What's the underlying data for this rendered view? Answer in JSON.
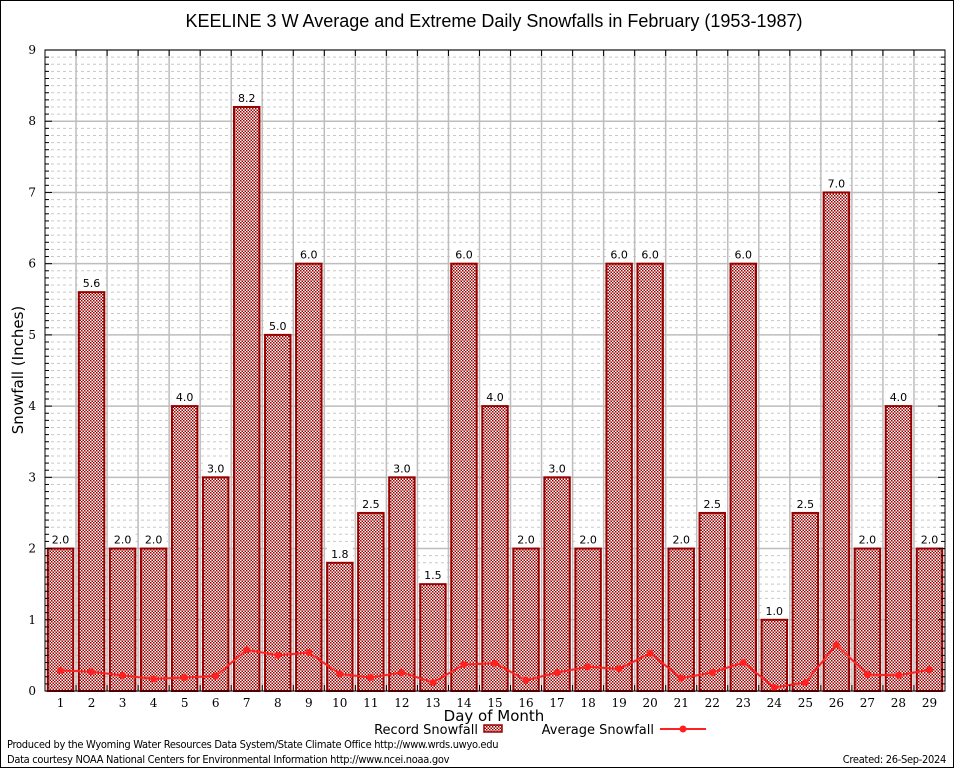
{
  "chart_data": {
    "type": "bar",
    "title": "KEELINE 3 W Average and Extreme Daily Snowfalls in February (1953-1987)",
    "xlabel": "Day of Month",
    "ylabel": "Snowfall (Inches)",
    "ylim": [
      0,
      9
    ],
    "yticks": [
      "0",
      "1",
      "2",
      "3",
      "4",
      "5",
      "6",
      "7",
      "8",
      "9"
    ],
    "grid": true,
    "categories": [
      "1",
      "2",
      "3",
      "4",
      "5",
      "6",
      "7",
      "8",
      "9",
      "10",
      "11",
      "12",
      "13",
      "14",
      "15",
      "16",
      "17",
      "18",
      "19",
      "20",
      "21",
      "22",
      "23",
      "24",
      "25",
      "26",
      "27",
      "28",
      "29"
    ],
    "series": [
      {
        "name": "Record Snowfall",
        "type": "bar",
        "color": "#990000",
        "values": [
          2.0,
          5.6,
          2.0,
          2.0,
          4.0,
          3.0,
          8.2,
          5.0,
          6.0,
          1.8,
          2.5,
          3.0,
          1.5,
          6.0,
          4.0,
          2.0,
          3.0,
          2.0,
          6.0,
          6.0,
          2.0,
          2.5,
          6.0,
          1.0,
          2.5,
          7.0,
          2.0,
          4.0,
          2.0
        ],
        "labels": [
          "2.0",
          "5.6",
          "2.0",
          "2.0",
          "4.0",
          "3.0",
          "8.2",
          "5.0",
          "6.0",
          "1.8",
          "2.5",
          "3.0",
          "1.5",
          "6.0",
          "4.0",
          "2.0",
          "3.0",
          "2.0",
          "6.0",
          "6.0",
          "2.0",
          "2.5",
          "6.0",
          "1.0",
          "2.5",
          "7.0",
          "2.0",
          "4.0",
          "2.0"
        ]
      },
      {
        "name": "Average Snowfall",
        "type": "line",
        "color": "#ff2020",
        "values": [
          0.29,
          0.27,
          0.22,
          0.17,
          0.19,
          0.21,
          0.58,
          0.5,
          0.54,
          0.24,
          0.19,
          0.26,
          0.12,
          0.37,
          0.39,
          0.15,
          0.26,
          0.34,
          0.31,
          0.53,
          0.18,
          0.26,
          0.4,
          0.05,
          0.12,
          0.65,
          0.23,
          0.22,
          0.3
        ]
      }
    ],
    "legend": {
      "placement": "bottom-center",
      "entries": [
        "Record Snowfall",
        "Average Snowfall"
      ]
    }
  },
  "footer": {
    "produced_by": "Produced by the Wyoming Water Resources Data System/State Climate Office http://www.wrds.uwyo.edu",
    "courtesy": "Data courtesy NOAA National Centers for Environmental Information http://www.ncei.noaa.gov",
    "created": "Created: 26-Sep-2024"
  }
}
